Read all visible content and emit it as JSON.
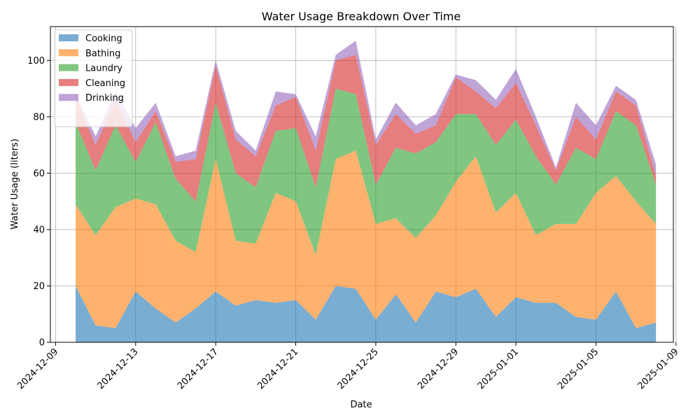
{
  "chart_data": {
    "type": "area",
    "stacked": true,
    "title": "Water Usage Breakdown Over Time",
    "xlabel": "Date",
    "ylabel": "Water Usage (liters)",
    "x_range": [
      "2024-12-08",
      "2025-01-09"
    ],
    "ylim": [
      0,
      112
    ],
    "grid": true,
    "legend_position": "top-left",
    "x_ticks": [
      "2024-12-09",
      "2024-12-13",
      "2024-12-17",
      "2024-12-21",
      "2024-12-25",
      "2024-12-29",
      "2025-01-01",
      "2025-01-05",
      "2025-01-09"
    ],
    "y_ticks": [
      0,
      20,
      40,
      60,
      80,
      100
    ],
    "x": [
      "2024-12-10",
      "2024-12-11",
      "2024-12-12",
      "2024-12-13",
      "2024-12-14",
      "2024-12-15",
      "2024-12-16",
      "2024-12-17",
      "2024-12-18",
      "2024-12-19",
      "2024-12-20",
      "2024-12-21",
      "2024-12-22",
      "2024-12-23",
      "2024-12-24",
      "2024-12-25",
      "2024-12-26",
      "2024-12-27",
      "2024-12-28",
      "2024-12-29",
      "2024-12-30",
      "2024-12-31",
      "2025-01-01",
      "2025-01-02",
      "2025-01-03",
      "2025-01-04",
      "2025-01-05",
      "2025-01-06",
      "2025-01-07",
      "2025-01-08"
    ],
    "series": [
      {
        "name": "Cooking",
        "color": "#1f77b4",
        "values": [
          20,
          6,
          5,
          18,
          12,
          7,
          12,
          18,
          13,
          15,
          14,
          15,
          8,
          20,
          19,
          8,
          17,
          7,
          18,
          16,
          19,
          9,
          16,
          14,
          14,
          9,
          8,
          18,
          5,
          7
        ]
      },
      {
        "name": "Bathing",
        "color": "#ff7f0e",
        "values": [
          29,
          32,
          43,
          33,
          37,
          29,
          20,
          47,
          23,
          20,
          39,
          35,
          23,
          45,
          49,
          34,
          27,
          30,
          27,
          41,
          47,
          37,
          37,
          24,
          28,
          33,
          45,
          41,
          45,
          35
        ]
      },
      {
        "name": "Laundry",
        "color": "#2ca02c",
        "values": [
          29,
          23,
          29,
          13,
          29,
          22,
          18,
          20,
          24,
          20,
          22,
          26,
          24,
          25,
          20,
          14,
          25,
          30,
          26,
          24,
          15,
          24,
          26,
          28,
          14,
          27,
          12,
          23,
          27,
          14
        ]
      },
      {
        "name": "Cleaning",
        "color": "#d62728",
        "values": [
          9,
          9,
          9,
          7,
          4,
          6,
          15,
          13,
          12,
          11,
          9,
          11,
          13,
          10,
          14,
          14,
          12,
          7,
          6,
          13,
          8,
          13,
          13,
          11,
          5,
          11,
          7,
          7,
          7,
          3
        ]
      },
      {
        "name": "Drinking",
        "color": "#9467bd",
        "values": [
          1,
          3,
          3,
          5,
          3,
          2,
          3,
          2,
          3,
          2,
          5,
          1,
          5,
          2,
          5,
          2,
          4,
          3,
          4,
          1,
          4,
          3,
          5,
          3,
          1,
          5,
          5,
          2,
          2,
          4
        ]
      }
    ]
  }
}
